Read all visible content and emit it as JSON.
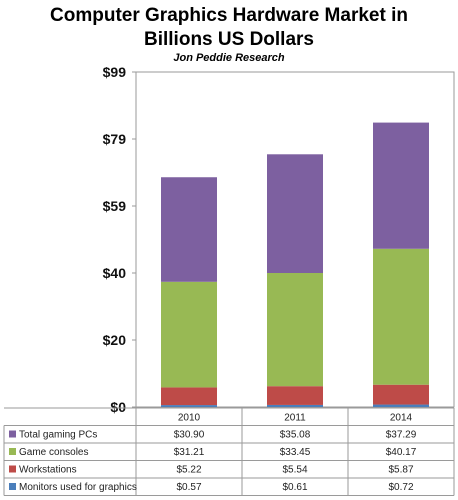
{
  "chart_data": {
    "type": "bar",
    "stacked": true,
    "title_line1": "Computer Graphics Hardware Market in",
    "title_line2": "Billions US Dollars",
    "subtitle": "Jon Peddie Research",
    "categories": [
      "2010",
      "2011",
      "2014"
    ],
    "ylim": [
      0,
      99
    ],
    "yticks": [
      "$0",
      "$20",
      "$40",
      "$59",
      "$79",
      "$99"
    ],
    "ytick_values": [
      0,
      19.8,
      39.6,
      59.4,
      79.2,
      99
    ],
    "grid": false,
    "legend_placement": "data-table-below",
    "series": [
      {
        "name": "Monitors used for graphics",
        "color": "#4a7ebb",
        "values": [
          0.57,
          0.61,
          0.72
        ],
        "labels": [
          "$0.57",
          "$0.61",
          "$0.72"
        ]
      },
      {
        "name": "Workstations",
        "color": "#be4b48",
        "values": [
          5.22,
          5.54,
          5.87
        ],
        "labels": [
          "$5.22",
          "$5.54",
          "$5.87"
        ]
      },
      {
        "name": "Game consoles",
        "color": "#98b954",
        "values": [
          31.21,
          33.45,
          40.17
        ],
        "labels": [
          "$31.21",
          "$33.45",
          "$40.17"
        ]
      },
      {
        "name": "Total gaming PCs",
        "color": "#7d60a0",
        "values": [
          30.9,
          35.08,
          37.29
        ],
        "labels": [
          "$30.90",
          "$35.08",
          "$37.29"
        ]
      }
    ]
  }
}
